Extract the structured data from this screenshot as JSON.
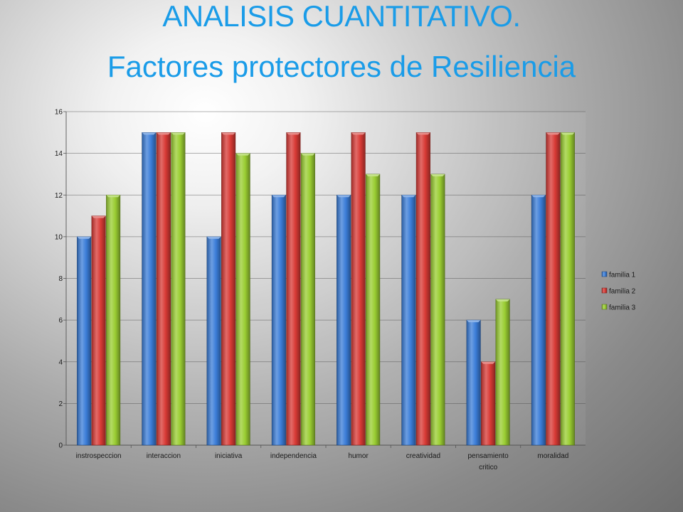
{
  "slide": {
    "title_line1": "ANALISIS CUANTITATIVO.",
    "title_line2": "Factores protectores de Resiliencia"
  },
  "chart_data": {
    "type": "bar",
    "categories": [
      [
        "instrospeccion"
      ],
      [
        "interaccion"
      ],
      [
        "iniciativa"
      ],
      [
        "independencia"
      ],
      [
        "humor"
      ],
      [
        "creatividad"
      ],
      [
        "pensamiento",
        "critico"
      ],
      [
        "moralidad"
      ]
    ],
    "series": [
      {
        "name": "familia 1",
        "color": "#3b7dd8",
        "values": [
          10,
          15,
          10,
          12,
          12,
          12,
          6,
          12
        ]
      },
      {
        "name": "familia 2",
        "color": "#d83a35",
        "values": [
          11,
          15,
          15,
          15,
          15,
          15,
          4,
          15
        ]
      },
      {
        "name": "familia 3",
        "color": "#9acd32",
        "values": [
          12,
          15,
          14,
          14,
          13,
          13,
          7,
          15
        ]
      }
    ],
    "ylim": [
      0,
      16
    ],
    "yticks": [
      0,
      2,
      4,
      6,
      8,
      10,
      12,
      14,
      16
    ],
    "grid": true,
    "legend_position": "right"
  }
}
